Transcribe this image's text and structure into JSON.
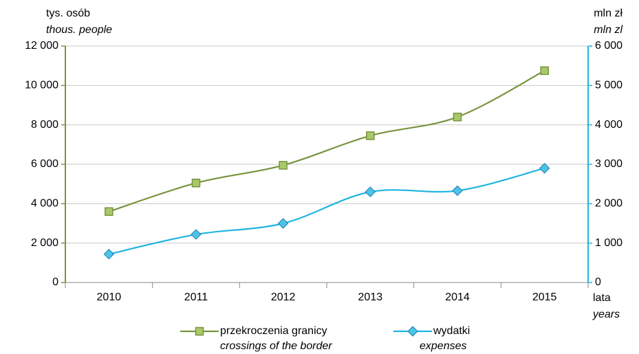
{
  "chart_data": {
    "type": "line",
    "y_label": "tys. osób",
    "y_label_en": "thous. people",
    "y2_label": "mln zł",
    "y2_label_en": "mln zl",
    "x_label": "lata",
    "x_label_en": "years",
    "categories": [
      "2010",
      "2011",
      "2012",
      "2013",
      "2014",
      "2015"
    ],
    "series": [
      {
        "name": "przekroczenia granicy",
        "name_en": "crossings of the border",
        "color": "#77933c",
        "marker": "square",
        "values": [
          3600,
          5050,
          5950,
          7450,
          8400,
          10750
        ]
      },
      {
        "name": "wydatki",
        "name_en": "expenses",
        "color": "#1fb4e0",
        "marker": "diamond",
        "axis": "y2",
        "values": [
          720,
          1220,
          1500,
          2300,
          2330,
          2900
        ]
      }
    ],
    "ylim": [
      0,
      12000
    ],
    "yticks": [
      0,
      {
        "value": 2000,
        "label": "2 000"
      },
      {
        "value": 4000,
        "label": "4 000"
      },
      {
        "value": 6000,
        "label": "6 000"
      },
      {
        "value": 8000,
        "label": "8 000"
      },
      {
        "value": 10000,
        "label": "10 000"
      },
      {
        "value": 12000,
        "label": "12 000"
      }
    ],
    "y2lim": [
      0,
      6000
    ],
    "y2ticks": [
      0,
      {
        "value": 1000,
        "label": "1 000"
      },
      {
        "value": 2000,
        "label": "2 000"
      },
      {
        "value": 3000,
        "label": "3 000"
      },
      {
        "value": 4000,
        "label": "4 000"
      },
      {
        "value": 5000,
        "label": "5 000"
      },
      {
        "value": 6000,
        "label": "6 000"
      }
    ],
    "grid": true,
    "legend": "bottom"
  }
}
